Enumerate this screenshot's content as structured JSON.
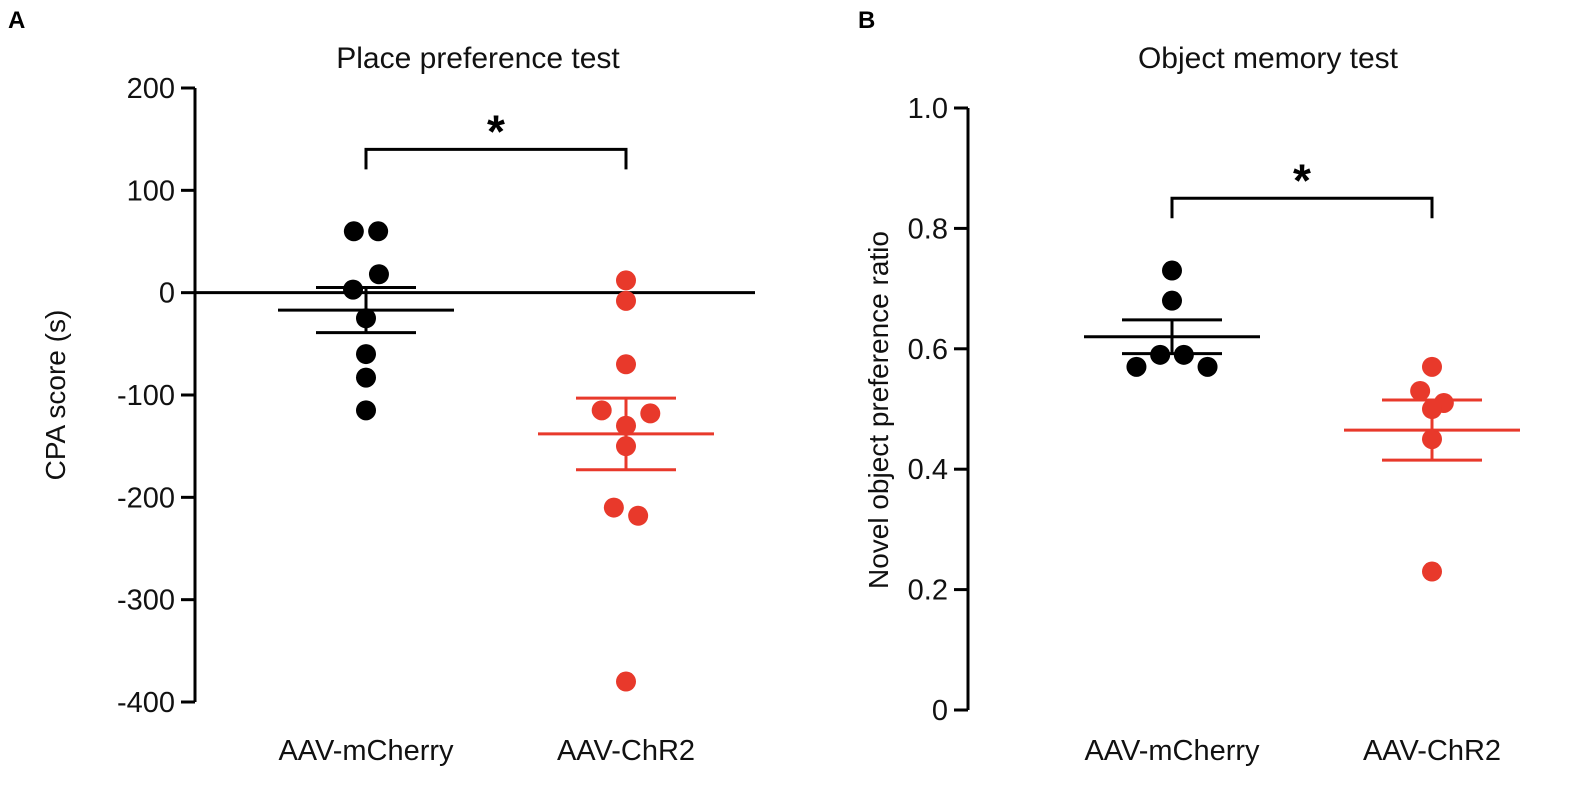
{
  "chart_data": [
    {
      "panel_label": "A",
      "type": "scatter",
      "title": "Place preference test",
      "xlabel": "",
      "ylabel": "CPA score (s)",
      "ylim": [
        -400,
        200
      ],
      "yticks": [
        200,
        100,
        0,
        -100,
        -200,
        -300,
        -400
      ],
      "ytick_labels": [
        "200",
        "100",
        "0",
        "-100",
        "-200",
        "-300",
        "-400"
      ],
      "categories": [
        "AAV-mCherry",
        "AAV-ChR2"
      ],
      "reference_line": 0,
      "series": [
        {
          "name": "AAV-mCherry",
          "color": "#000000",
          "mean": -17,
          "sem": 22,
          "points": [
            {
              "offset": -0.075,
              "value": 60
            },
            {
              "offset": 0.075,
              "value": 60
            },
            {
              "offset": 0.08,
              "value": 18
            },
            {
              "offset": -0.08,
              "value": 3
            },
            {
              "offset": 0.0,
              "value": -25
            },
            {
              "offset": 0.0,
              "value": -60
            },
            {
              "offset": 0.0,
              "value": -83
            },
            {
              "offset": 0.0,
              "value": -115
            }
          ]
        },
        {
          "name": "AAV-ChR2",
          "color": "#e8392b",
          "mean": -138,
          "sem": 35,
          "points": [
            {
              "offset": 0.0,
              "value": 12
            },
            {
              "offset": 0.0,
              "value": -8
            },
            {
              "offset": 0.0,
              "value": -70
            },
            {
              "offset": -0.15,
              "value": -115
            },
            {
              "offset": 0.15,
              "value": -118
            },
            {
              "offset": 0.0,
              "value": -130
            },
            {
              "offset": 0.0,
              "value": -150
            },
            {
              "offset": -0.075,
              "value": -210
            },
            {
              "offset": 0.075,
              "value": -218
            },
            {
              "offset": 0.0,
              "value": -380
            }
          ]
        }
      ],
      "significance": {
        "groups": [
          "AAV-mCherry",
          "AAV-ChR2"
        ],
        "label": "*",
        "level": 140
      }
    },
    {
      "panel_label": "B",
      "type": "scatter",
      "title": "Object memory test",
      "xlabel": "",
      "ylabel": "Novel object preference ratio",
      "ylim": [
        0,
        1.0
      ],
      "yticks": [
        1.0,
        0.8,
        0.6,
        0.4,
        0.2,
        0
      ],
      "ytick_labels": [
        "1.0",
        "0.8",
        "0.6",
        "0.4",
        "0.2",
        "0"
      ],
      "categories": [
        "AAV-mCherry",
        "AAV-ChR2"
      ],
      "series": [
        {
          "name": "AAV-mCherry",
          "color": "#000000",
          "mean": 0.62,
          "sem": 0.028,
          "points": [
            {
              "offset": 0.0,
              "value": 0.73
            },
            {
              "offset": 0.0,
              "value": 0.68
            },
            {
              "offset": -0.075,
              "value": 0.59
            },
            {
              "offset": 0.075,
              "value": 0.59
            },
            {
              "offset": -0.225,
              "value": 0.57
            },
            {
              "offset": 0.225,
              "value": 0.57
            }
          ]
        },
        {
          "name": "AAV-ChR2",
          "color": "#e8392b",
          "mean": 0.465,
          "sem": 0.05,
          "points": [
            {
              "offset": 0.0,
              "value": 0.57
            },
            {
              "offset": -0.075,
              "value": 0.53
            },
            {
              "offset": 0.075,
              "value": 0.51
            },
            {
              "offset": 0.0,
              "value": 0.5
            },
            {
              "offset": 0.0,
              "value": 0.45
            },
            {
              "offset": 0.0,
              "value": 0.23
            }
          ]
        }
      ],
      "significance": {
        "groups": [
          "AAV-mCherry",
          "AAV-ChR2"
        ],
        "label": "*",
        "level": 0.85
      }
    }
  ]
}
